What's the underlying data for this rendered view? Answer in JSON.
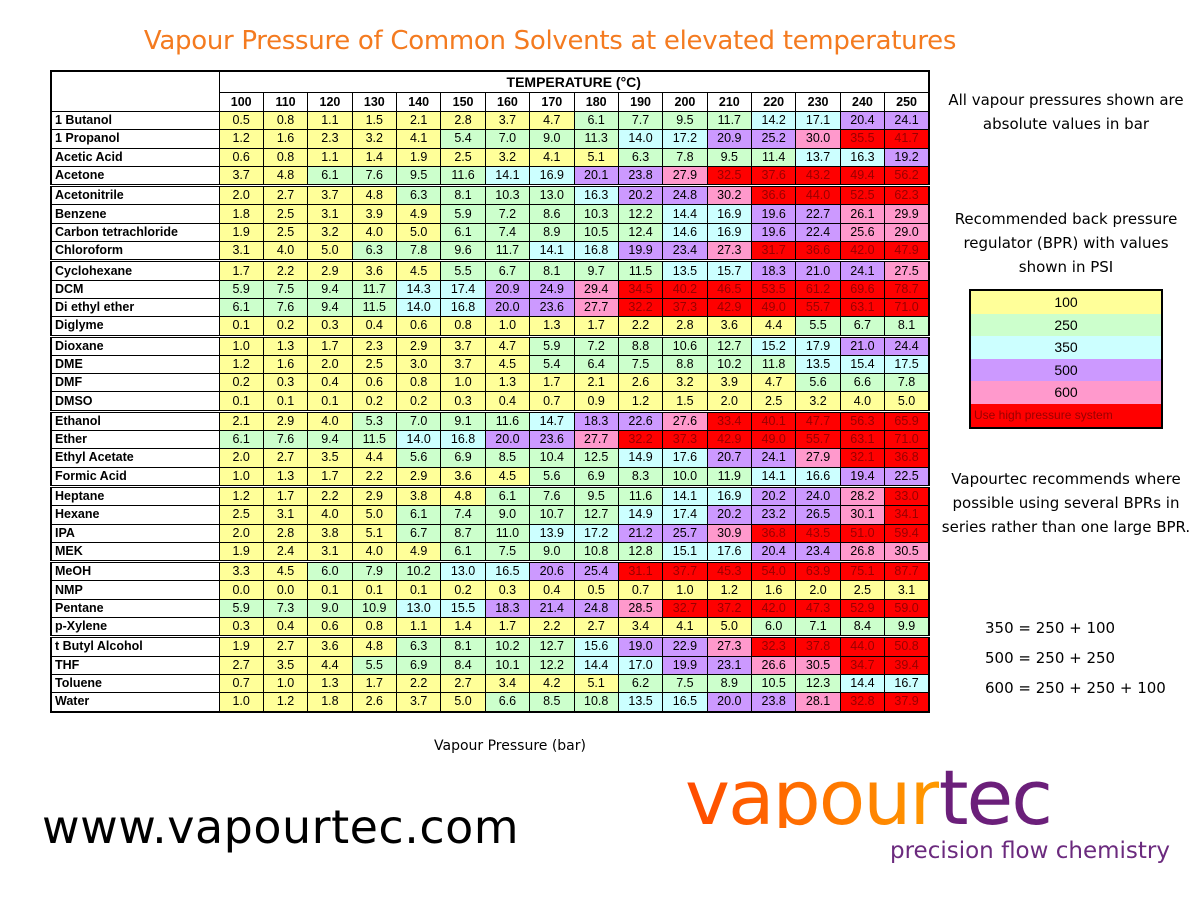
{
  "title": "Vapour Pressure of Common Solvents at elevated temperatures",
  "caption": "Vapour Pressure (bar)",
  "colors": {
    "Y": "#ffff99",
    "G": "#ccffcc",
    "C": "#ccffff",
    "P": "#cc99ff",
    "K": "#ff99cc",
    "R": "#ff0000"
  },
  "chart_data": {
    "type": "table",
    "column_group_header": "TEMPERATURE (°C)",
    "columns": [
      "100",
      "110",
      "120",
      "130",
      "140",
      "150",
      "160",
      "170",
      "180",
      "190",
      "200",
      "210",
      "220",
      "230",
      "240",
      "250"
    ],
    "value_label": "Vapour Pressure (bar)",
    "rows": [
      {
        "name": "1 Butanol",
        "values": [
          "0.5",
          "0.8",
          "1.1",
          "1.5",
          "2.1",
          "2.8",
          "3.7",
          "4.7",
          "6.1",
          "7.7",
          "9.5",
          "11.7",
          "14.2",
          "17.1",
          "20.4",
          "24.1"
        ],
        "bpr": "YYYYYYYYGGGGCCPP"
      },
      {
        "name": "1 Propanol",
        "values": [
          "1.2",
          "1.6",
          "2.3",
          "3.2",
          "4.1",
          "5.4",
          "7.0",
          "9.0",
          "11.3",
          "14.0",
          "17.2",
          "20.9",
          "25.2",
          "30.0",
          "35.5",
          "41.7"
        ],
        "bpr": "YYYYYGGGGCCPPKRR"
      },
      {
        "name": "Acetic Acid",
        "values": [
          "0.6",
          "0.8",
          "1.1",
          "1.4",
          "1.9",
          "2.5",
          "3.2",
          "4.1",
          "5.1",
          "6.3",
          "7.8",
          "9.5",
          "11.4",
          "13.7",
          "16.3",
          "19.2"
        ],
        "bpr": "YYYYYYYYYGGGGCCP"
      },
      {
        "name": "Acetone",
        "values": [
          "3.7",
          "4.8",
          "6.1",
          "7.6",
          "9.5",
          "11.6",
          "14.1",
          "16.9",
          "20.1",
          "23.8",
          "27.9",
          "32.5",
          "37.6",
          "43.2",
          "49.4",
          "56.2"
        ],
        "bpr": "YYGGGGCCPPKRRRRR"
      },
      {
        "name": "Acetonitrile",
        "sep": true,
        "values": [
          "2.0",
          "2.7",
          "3.7",
          "4.8",
          "6.3",
          "8.1",
          "10.3",
          "13.0",
          "16.3",
          "20.2",
          "24.8",
          "30.2",
          "36.6",
          "44.0",
          "52.5",
          "62.3"
        ],
        "bpr": "YYYYGGGGCPPKRRRR"
      },
      {
        "name": "Benzene",
        "values": [
          "1.8",
          "2.5",
          "3.1",
          "3.9",
          "4.9",
          "5.9",
          "7.2",
          "8.6",
          "10.3",
          "12.2",
          "14.4",
          "16.9",
          "19.6",
          "22.7",
          "26.1",
          "29.9"
        ],
        "bpr": "YYYYYGGGGGCCPPKK"
      },
      {
        "name": "Carbon tetrachloride",
        "values": [
          "1.9",
          "2.5",
          "3.2",
          "4.0",
          "5.0",
          "6.1",
          "7.4",
          "8.9",
          "10.5",
          "12.4",
          "14.6",
          "16.9",
          "19.6",
          "22.4",
          "25.6",
          "29.0"
        ],
        "bpr": "YYYYYGGGGGCCPPKK"
      },
      {
        "name": "Chloroform",
        "values": [
          "3.1",
          "4.0",
          "5.0",
          "6.3",
          "7.8",
          "9.6",
          "11.7",
          "14.1",
          "16.8",
          "19.9",
          "23.4",
          "27.3",
          "31.7",
          "36.6",
          "42.0",
          "47.9"
        ],
        "bpr": "YYYGGGGCCPPKRRRR"
      },
      {
        "name": "Cyclohexane",
        "sep": true,
        "values": [
          "1.7",
          "2.2",
          "2.9",
          "3.6",
          "4.5",
          "5.5",
          "6.7",
          "8.1",
          "9.7",
          "11.5",
          "13.5",
          "15.7",
          "18.3",
          "21.0",
          "24.1",
          "27.5"
        ],
        "bpr": "YYYYYGGGGGCCPPPK"
      },
      {
        "name": "DCM",
        "values": [
          "5.9",
          "7.5",
          "9.4",
          "11.7",
          "14.3",
          "17.4",
          "20.9",
          "24.9",
          "29.4",
          "34.5",
          "40.2",
          "46.5",
          "53.5",
          "61.2",
          "69.6",
          "78.7"
        ],
        "bpr": "GGGGCCPPKRRRRRRR"
      },
      {
        "name": "Di ethyl ether",
        "values": [
          "6.1",
          "7.6",
          "9.4",
          "11.5",
          "14.0",
          "16.8",
          "20.0",
          "23.6",
          "27.7",
          "32.2",
          "37.3",
          "42.9",
          "49.0",
          "55.7",
          "63.1",
          "71.0"
        ],
        "bpr": "GGGGCCPPKRRRRRRR"
      },
      {
        "name": "Diglyme",
        "values": [
          "0.1",
          "0.2",
          "0.3",
          "0.4",
          "0.6",
          "0.8",
          "1.0",
          "1.3",
          "1.7",
          "2.2",
          "2.8",
          "3.6",
          "4.4",
          "5.5",
          "6.7",
          "8.1"
        ],
        "bpr": "YYYYYYYYYYYYYGGG"
      },
      {
        "name": "Dioxane",
        "sep": true,
        "values": [
          "1.0",
          "1.3",
          "1.7",
          "2.3",
          "2.9",
          "3.7",
          "4.7",
          "5.9",
          "7.2",
          "8.8",
          "10.6",
          "12.7",
          "15.2",
          "17.9",
          "21.0",
          "24.4"
        ],
        "bpr": "YYYYYYYGGGGGCCPP"
      },
      {
        "name": "DME",
        "values": [
          "1.2",
          "1.6",
          "2.0",
          "2.5",
          "3.0",
          "3.7",
          "4.5",
          "5.4",
          "6.4",
          "7.5",
          "8.8",
          "10.2",
          "11.8",
          "13.5",
          "15.4",
          "17.5"
        ],
        "bpr": "YYYYYYYGGGGGGCCC"
      },
      {
        "name": "DMF",
        "values": [
          "0.2",
          "0.3",
          "0.4",
          "0.6",
          "0.8",
          "1.0",
          "1.3",
          "1.7",
          "2.1",
          "2.6",
          "3.2",
          "3.9",
          "4.7",
          "5.6",
          "6.6",
          "7.8"
        ],
        "bpr": "YYYYYYYYYYYYYGGG"
      },
      {
        "name": "DMSO",
        "values": [
          "0.1",
          "0.1",
          "0.1",
          "0.2",
          "0.2",
          "0.3",
          "0.4",
          "0.7",
          "0.9",
          "1.2",
          "1.5",
          "2.0",
          "2.5",
          "3.2",
          "4.0",
          "5.0"
        ],
        "bpr": "YYYYYYYYYYYYYYYY"
      },
      {
        "name": "Ethanol",
        "sep": true,
        "values": [
          "2.1",
          "2.9",
          "4.0",
          "5.3",
          "7.0",
          "9.1",
          "11.6",
          "14.7",
          "18.3",
          "22.6",
          "27.6",
          "33.4",
          "40.1",
          "47.7",
          "56.3",
          "65.9"
        ],
        "bpr": "YYYGGGGCPPKRRRRR"
      },
      {
        "name": "Ether",
        "values": [
          "6.1",
          "7.6",
          "9.4",
          "11.5",
          "14.0",
          "16.8",
          "20.0",
          "23.6",
          "27.7",
          "32.2",
          "37.3",
          "42.9",
          "49.0",
          "55.7",
          "63.1",
          "71.0"
        ],
        "bpr": "GGGGCCPPKRRRRRRR"
      },
      {
        "name": "Ethyl Acetate",
        "values": [
          "2.0",
          "2.7",
          "3.5",
          "4.4",
          "5.6",
          "6.9",
          "8.5",
          "10.4",
          "12.5",
          "14.9",
          "17.6",
          "20.7",
          "24.1",
          "27.9",
          "32.1",
          "36.8"
        ],
        "bpr": "YYYYGGGGGCCPPKRR"
      },
      {
        "name": "Formic Acid",
        "values": [
          "1.0",
          "1.3",
          "1.7",
          "2.2",
          "2.9",
          "3.6",
          "4.5",
          "5.6",
          "6.9",
          "8.3",
          "10.0",
          "11.9",
          "14.1",
          "16.6",
          "19.4",
          "22.5"
        ],
        "bpr": "YYYYYYYGGGGGCCPP"
      },
      {
        "name": "Heptane",
        "sep": true,
        "values": [
          "1.2",
          "1.7",
          "2.2",
          "2.9",
          "3.8",
          "4.8",
          "6.1",
          "7.6",
          "9.5",
          "11.6",
          "14.1",
          "16.9",
          "20.2",
          "24.0",
          "28.2",
          "33.0"
        ],
        "bpr": "YYYYYYGGGGCCPPKR"
      },
      {
        "name": "Hexane",
        "values": [
          "2.5",
          "3.1",
          "4.0",
          "5.0",
          "6.1",
          "7.4",
          "9.0",
          "10.7",
          "12.7",
          "14.9",
          "17.4",
          "20.2",
          "23.2",
          "26.5",
          "30.1",
          "34.1"
        ],
        "bpr": "YYYYGGGGGCCPPPKR"
      },
      {
        "name": "IPA",
        "values": [
          "2.0",
          "2.8",
          "3.8",
          "5.1",
          "6.7",
          "8.7",
          "11.0",
          "13.9",
          "17.2",
          "21.2",
          "25.7",
          "30.9",
          "36.8",
          "43.5",
          "51.0",
          "59.4"
        ],
        "bpr": "YYYYGGGCCPPKRRRR"
      },
      {
        "name": "MEK",
        "values": [
          "1.9",
          "2.4",
          "3.1",
          "4.0",
          "4.9",
          "6.1",
          "7.5",
          "9.0",
          "10.8",
          "12.8",
          "15.1",
          "17.6",
          "20.4",
          "23.4",
          "26.8",
          "30.5"
        ],
        "bpr": "YYYYYGGGGGCCPPKK"
      },
      {
        "name": "MeOH",
        "sep": true,
        "values": [
          "3.3",
          "4.5",
          "6.0",
          "7.9",
          "10.2",
          "13.0",
          "16.5",
          "20.6",
          "25.4",
          "31.1",
          "37.7",
          "45.3",
          "54.0",
          "63.9",
          "75.1",
          "87.7"
        ],
        "bpr": "YYGGGCCPPRRRRRRR"
      },
      {
        "name": "NMP",
        "values": [
          "0.0",
          "0.0",
          "0.1",
          "0.1",
          "0.1",
          "0.2",
          "0.3",
          "0.4",
          "0.5",
          "0.7",
          "1.0",
          "1.2",
          "1.6",
          "2.0",
          "2.5",
          "3.1"
        ],
        "bpr": "YYYYYYYYYYYYYYYY"
      },
      {
        "name": "Pentane",
        "values": [
          "5.9",
          "7.3",
          "9.0",
          "10.9",
          "13.0",
          "15.5",
          "18.3",
          "21.4",
          "24.8",
          "28.5",
          "32.7",
          "37.2",
          "42.0",
          "47.3",
          "52.9",
          "59.0"
        ],
        "bpr": "GGGGCCPPPKRRRRRR"
      },
      {
        "name": "p-Xylene",
        "values": [
          "0.3",
          "0.4",
          "0.6",
          "0.8",
          "1.1",
          "1.4",
          "1.7",
          "2.2",
          "2.7",
          "3.4",
          "4.1",
          "5.0",
          "6.0",
          "7.1",
          "8.4",
          "9.9"
        ],
        "bpr": "YYYYYYYYYYYYGGGG"
      },
      {
        "name": "t Butyl Alcohol",
        "sep": true,
        "values": [
          "1.9",
          "2.7",
          "3.6",
          "4.8",
          "6.3",
          "8.1",
          "10.2",
          "12.7",
          "15.6",
          "19.0",
          "22.9",
          "27.3",
          "32.3",
          "37.8",
          "44.0",
          "50.8"
        ],
        "bpr": "YYYYGGGGCPPKRRRR"
      },
      {
        "name": "THF",
        "values": [
          "2.7",
          "3.5",
          "4.4",
          "5.5",
          "6.9",
          "8.4",
          "10.1",
          "12.2",
          "14.4",
          "17.0",
          "19.9",
          "23.1",
          "26.6",
          "30.5",
          "34.7",
          "39.4"
        ],
        "bpr": "YYYGGGGGCCPPKKRR"
      },
      {
        "name": "Toluene",
        "values": [
          "0.7",
          "1.0",
          "1.3",
          "1.7",
          "2.2",
          "2.7",
          "3.4",
          "4.2",
          "5.1",
          "6.2",
          "7.5",
          "8.9",
          "10.5",
          "12.3",
          "14.4",
          "16.7"
        ],
        "bpr": "YYYYYYYYYGGGGGCC"
      },
      {
        "name": "Water",
        "values": [
          "1.0",
          "1.2",
          "1.8",
          "2.6",
          "3.7",
          "5.0",
          "6.6",
          "8.5",
          "10.8",
          "13.5",
          "16.5",
          "20.0",
          "23.8",
          "28.1",
          "32.8",
          "37.9"
        ],
        "bpr": "YYYYYYGGGCCPPKRR"
      }
    ]
  },
  "side": {
    "note1": "All vapour pressures shown are absolute values in bar",
    "note2": "Recommended back pressure regulator (BPR) with values shown in PSI",
    "legend": [
      {
        "code": "Y",
        "label": "100"
      },
      {
        "code": "G",
        "label": "250"
      },
      {
        "code": "C",
        "label": "350"
      },
      {
        "code": "P",
        "label": "500"
      },
      {
        "code": "K",
        "label": "600"
      },
      {
        "code": "R",
        "label": "Use high pressure system"
      }
    ],
    "note3": "Vapourtec recommends where possible using several BPRs in series rather than one large BPR.",
    "equations": [
      "350 = 250 + 100",
      "500 = 250 + 250",
      "600 = 250 + 250 + 100"
    ]
  },
  "footer": {
    "url": "www.vapourtec.com",
    "logo_part1": "vapour",
    "logo_part2": "tec",
    "tagline": "precision flow chemistry"
  }
}
